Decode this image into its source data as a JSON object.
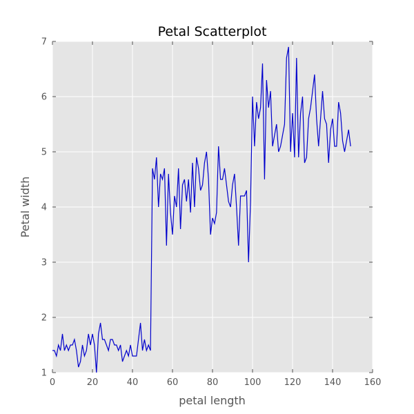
{
  "chart_data": {
    "type": "line",
    "title": "Petal Scatterplot",
    "xlabel": "petal length",
    "ylabel": "Petal width",
    "xlim": [
      0,
      160
    ],
    "ylim": [
      1,
      7
    ],
    "xticks": [
      0,
      20,
      40,
      60,
      80,
      100,
      120,
      140,
      160
    ],
    "yticks": [
      1,
      2,
      3,
      4,
      5,
      6,
      7
    ],
    "grid": true,
    "background": "#e5e5e5",
    "line_color": "#0000cc",
    "series": [
      {
        "x": [
          0,
          1,
          2,
          3,
          4,
          5,
          6,
          7,
          8,
          9,
          10,
          11,
          12,
          13,
          14,
          15,
          16,
          17,
          18,
          19,
          20,
          21,
          22,
          23,
          24,
          25,
          26,
          27,
          28,
          29,
          30,
          31,
          32,
          33,
          34,
          35,
          36,
          37,
          38,
          39,
          40,
          41,
          42,
          43,
          44,
          45,
          46,
          47,
          48,
          49,
          50,
          51,
          52,
          53,
          54,
          55,
          56,
          57,
          58,
          59,
          60,
          61,
          62,
          63,
          64,
          65,
          66,
          67,
          68,
          69,
          70,
          71,
          72,
          73,
          74,
          75,
          76,
          77,
          78,
          79,
          80,
          81,
          82,
          83,
          84,
          85,
          86,
          87,
          88,
          89,
          90,
          91,
          92,
          93,
          94,
          95,
          96,
          97,
          98,
          99,
          100,
          101,
          102,
          103,
          104,
          105,
          106,
          107,
          108,
          109,
          110,
          111,
          112,
          113,
          114,
          115,
          116,
          117,
          118,
          119,
          120,
          121,
          122,
          123,
          124,
          125,
          126,
          127,
          128,
          129,
          130,
          131,
          132,
          133,
          134,
          135,
          136,
          137,
          138,
          139,
          140,
          141,
          142,
          143,
          144,
          145,
          146,
          147,
          148,
          149
        ],
        "y": [
          1.4,
          1.4,
          1.3,
          1.5,
          1.4,
          1.7,
          1.4,
          1.5,
          1.4,
          1.5,
          1.5,
          1.6,
          1.4,
          1.1,
          1.2,
          1.5,
          1.3,
          1.4,
          1.7,
          1.5,
          1.7,
          1.5,
          1.0,
          1.7,
          1.9,
          1.6,
          1.6,
          1.5,
          1.4,
          1.6,
          1.6,
          1.5,
          1.5,
          1.4,
          1.5,
          1.2,
          1.3,
          1.4,
          1.3,
          1.5,
          1.3,
          1.3,
          1.3,
          1.6,
          1.9,
          1.4,
          1.6,
          1.4,
          1.5,
          1.4,
          4.7,
          4.5,
          4.9,
          4.0,
          4.6,
          4.5,
          4.7,
          3.3,
          4.6,
          3.9,
          3.5,
          4.2,
          4.0,
          4.7,
          3.6,
          4.4,
          4.5,
          4.1,
          4.5,
          3.9,
          4.8,
          4.0,
          4.9,
          4.7,
          4.3,
          4.4,
          4.8,
          5.0,
          4.5,
          3.5,
          3.8,
          3.7,
          3.9,
          5.1,
          4.5,
          4.5,
          4.7,
          4.4,
          4.1,
          4.0,
          4.4,
          4.6,
          4.0,
          3.3,
          4.2,
          4.2,
          4.2,
          4.3,
          3.0,
          4.1,
          6.0,
          5.1,
          5.9,
          5.6,
          5.8,
          6.6,
          4.5,
          6.3,
          5.8,
          6.1,
          5.1,
          5.3,
          5.5,
          5.0,
          5.1,
          5.3,
          5.5,
          6.7,
          6.9,
          5.0,
          5.7,
          4.9,
          6.7,
          4.9,
          5.7,
          6.0,
          4.8,
          4.9,
          5.6,
          5.8,
          6.1,
          6.4,
          5.6,
          5.1,
          5.6,
          6.1,
          5.6,
          5.5,
          4.8,
          5.4,
          5.6,
          5.1,
          5.1,
          5.9,
          5.7,
          5.2,
          5.0,
          5.2,
          5.4,
          5.1
        ]
      }
    ]
  }
}
